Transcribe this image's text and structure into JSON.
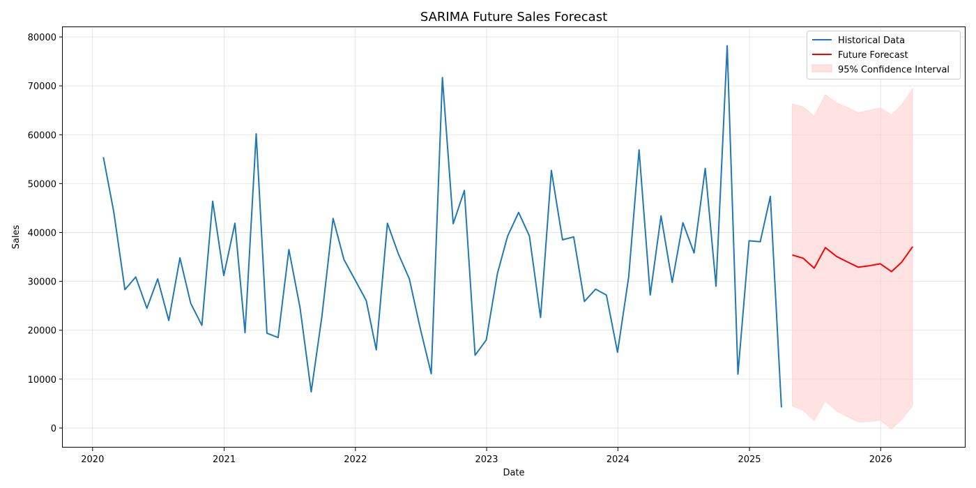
{
  "chart_data": {
    "type": "line",
    "title": "SARIMA Future Sales Forecast",
    "xlabel": "Date",
    "ylabel": "Sales",
    "x_range": [
      "2019-10-10",
      "2026-08-25"
    ],
    "ylim": [
      -4000,
      82000
    ],
    "x_ticks": [
      "2020",
      "2021",
      "2022",
      "2023",
      "2024",
      "2025",
      "2026"
    ],
    "y_ticks": [
      0,
      10000,
      20000,
      30000,
      40000,
      50000,
      60000,
      70000,
      80000
    ],
    "grid": true,
    "legend_position": "top-right",
    "colors": {
      "historical": "#1f77b4",
      "forecast": "#ff0000",
      "confidence": "#ffcccc"
    },
    "series": [
      {
        "name": "Historical Data",
        "x": [
          "2020-01-31",
          "2020-02-29",
          "2020-03-31",
          "2020-04-30",
          "2020-05-31",
          "2020-06-30",
          "2020-07-31",
          "2020-08-31",
          "2020-09-30",
          "2020-10-31",
          "2020-11-30",
          "2020-12-31",
          "2021-01-31",
          "2021-02-28",
          "2021-03-31",
          "2021-04-30",
          "2021-05-31",
          "2021-06-30",
          "2021-07-31",
          "2021-08-31",
          "2021-09-30",
          "2021-10-31",
          "2021-11-30",
          "2021-12-31",
          "2022-01-31",
          "2022-02-28",
          "2022-03-31",
          "2022-04-30",
          "2022-05-31",
          "2022-06-30",
          "2022-07-31",
          "2022-08-31",
          "2022-09-30",
          "2022-10-31",
          "2022-11-30",
          "2022-12-31",
          "2023-01-31",
          "2023-02-28",
          "2023-03-31",
          "2023-04-30",
          "2023-05-31",
          "2023-06-30",
          "2023-07-31",
          "2023-08-31",
          "2023-09-30",
          "2023-10-31",
          "2023-11-30",
          "2023-12-31",
          "2024-01-31",
          "2024-02-29",
          "2024-03-31",
          "2024-04-30",
          "2024-05-31",
          "2024-06-30",
          "2024-07-31",
          "2024-08-31",
          "2024-09-30",
          "2024-10-31",
          "2024-11-30",
          "2024-12-31",
          "2025-01-31",
          "2025-02-28",
          "2025-03-31"
        ],
        "values": [
          55400,
          44200,
          28300,
          30900,
          24500,
          30500,
          22000,
          34800,
          25500,
          21000,
          46400,
          31200,
          41900,
          19500,
          60200,
          19400,
          18500,
          36500,
          24600,
          7400,
          22900,
          42900,
          34500,
          30300,
          26100,
          16000,
          41900,
          35700,
          30500,
          20500,
          11100,
          71700,
          41800,
          48600,
          14900,
          18000,
          31600,
          39200,
          44100,
          39300,
          22600,
          52700,
          38500,
          39100,
          25900,
          28400,
          27200,
          15500,
          30900,
          56900,
          27200,
          43400,
          29800,
          42000,
          35800,
          53100,
          29000,
          78200,
          11000,
          38300,
          38100,
          47400,
          4200
        ]
      },
      {
        "name": "Future Forecast",
        "x": [
          "2025-04-30",
          "2025-05-31",
          "2025-06-30",
          "2025-07-31",
          "2025-08-31",
          "2025-09-30",
          "2025-10-31",
          "2025-11-30",
          "2025-12-31",
          "2026-01-31",
          "2026-02-28",
          "2026-03-31"
        ],
        "values": [
          35400,
          34700,
          32700,
          36900,
          35100,
          34000,
          32900,
          33200,
          33600,
          32000,
          33900,
          37100
        ]
      }
    ],
    "confidence_interval": {
      "name": "95% Confidence Interval",
      "x": [
        "2025-04-30",
        "2025-05-31",
        "2025-06-30",
        "2025-07-31",
        "2025-08-31",
        "2025-09-30",
        "2025-10-31",
        "2025-11-30",
        "2025-12-31",
        "2026-01-31",
        "2026-02-28",
        "2026-03-31"
      ],
      "lower": [
        4500,
        3600,
        1500,
        5500,
        3500,
        2300,
        1200,
        1300,
        1600,
        -200,
        1700,
        4600
      ],
      "upper": [
        66300,
        65700,
        63800,
        68200,
        66500,
        65600,
        64500,
        65000,
        65500,
        64100,
        66100,
        69400
      ]
    }
  }
}
